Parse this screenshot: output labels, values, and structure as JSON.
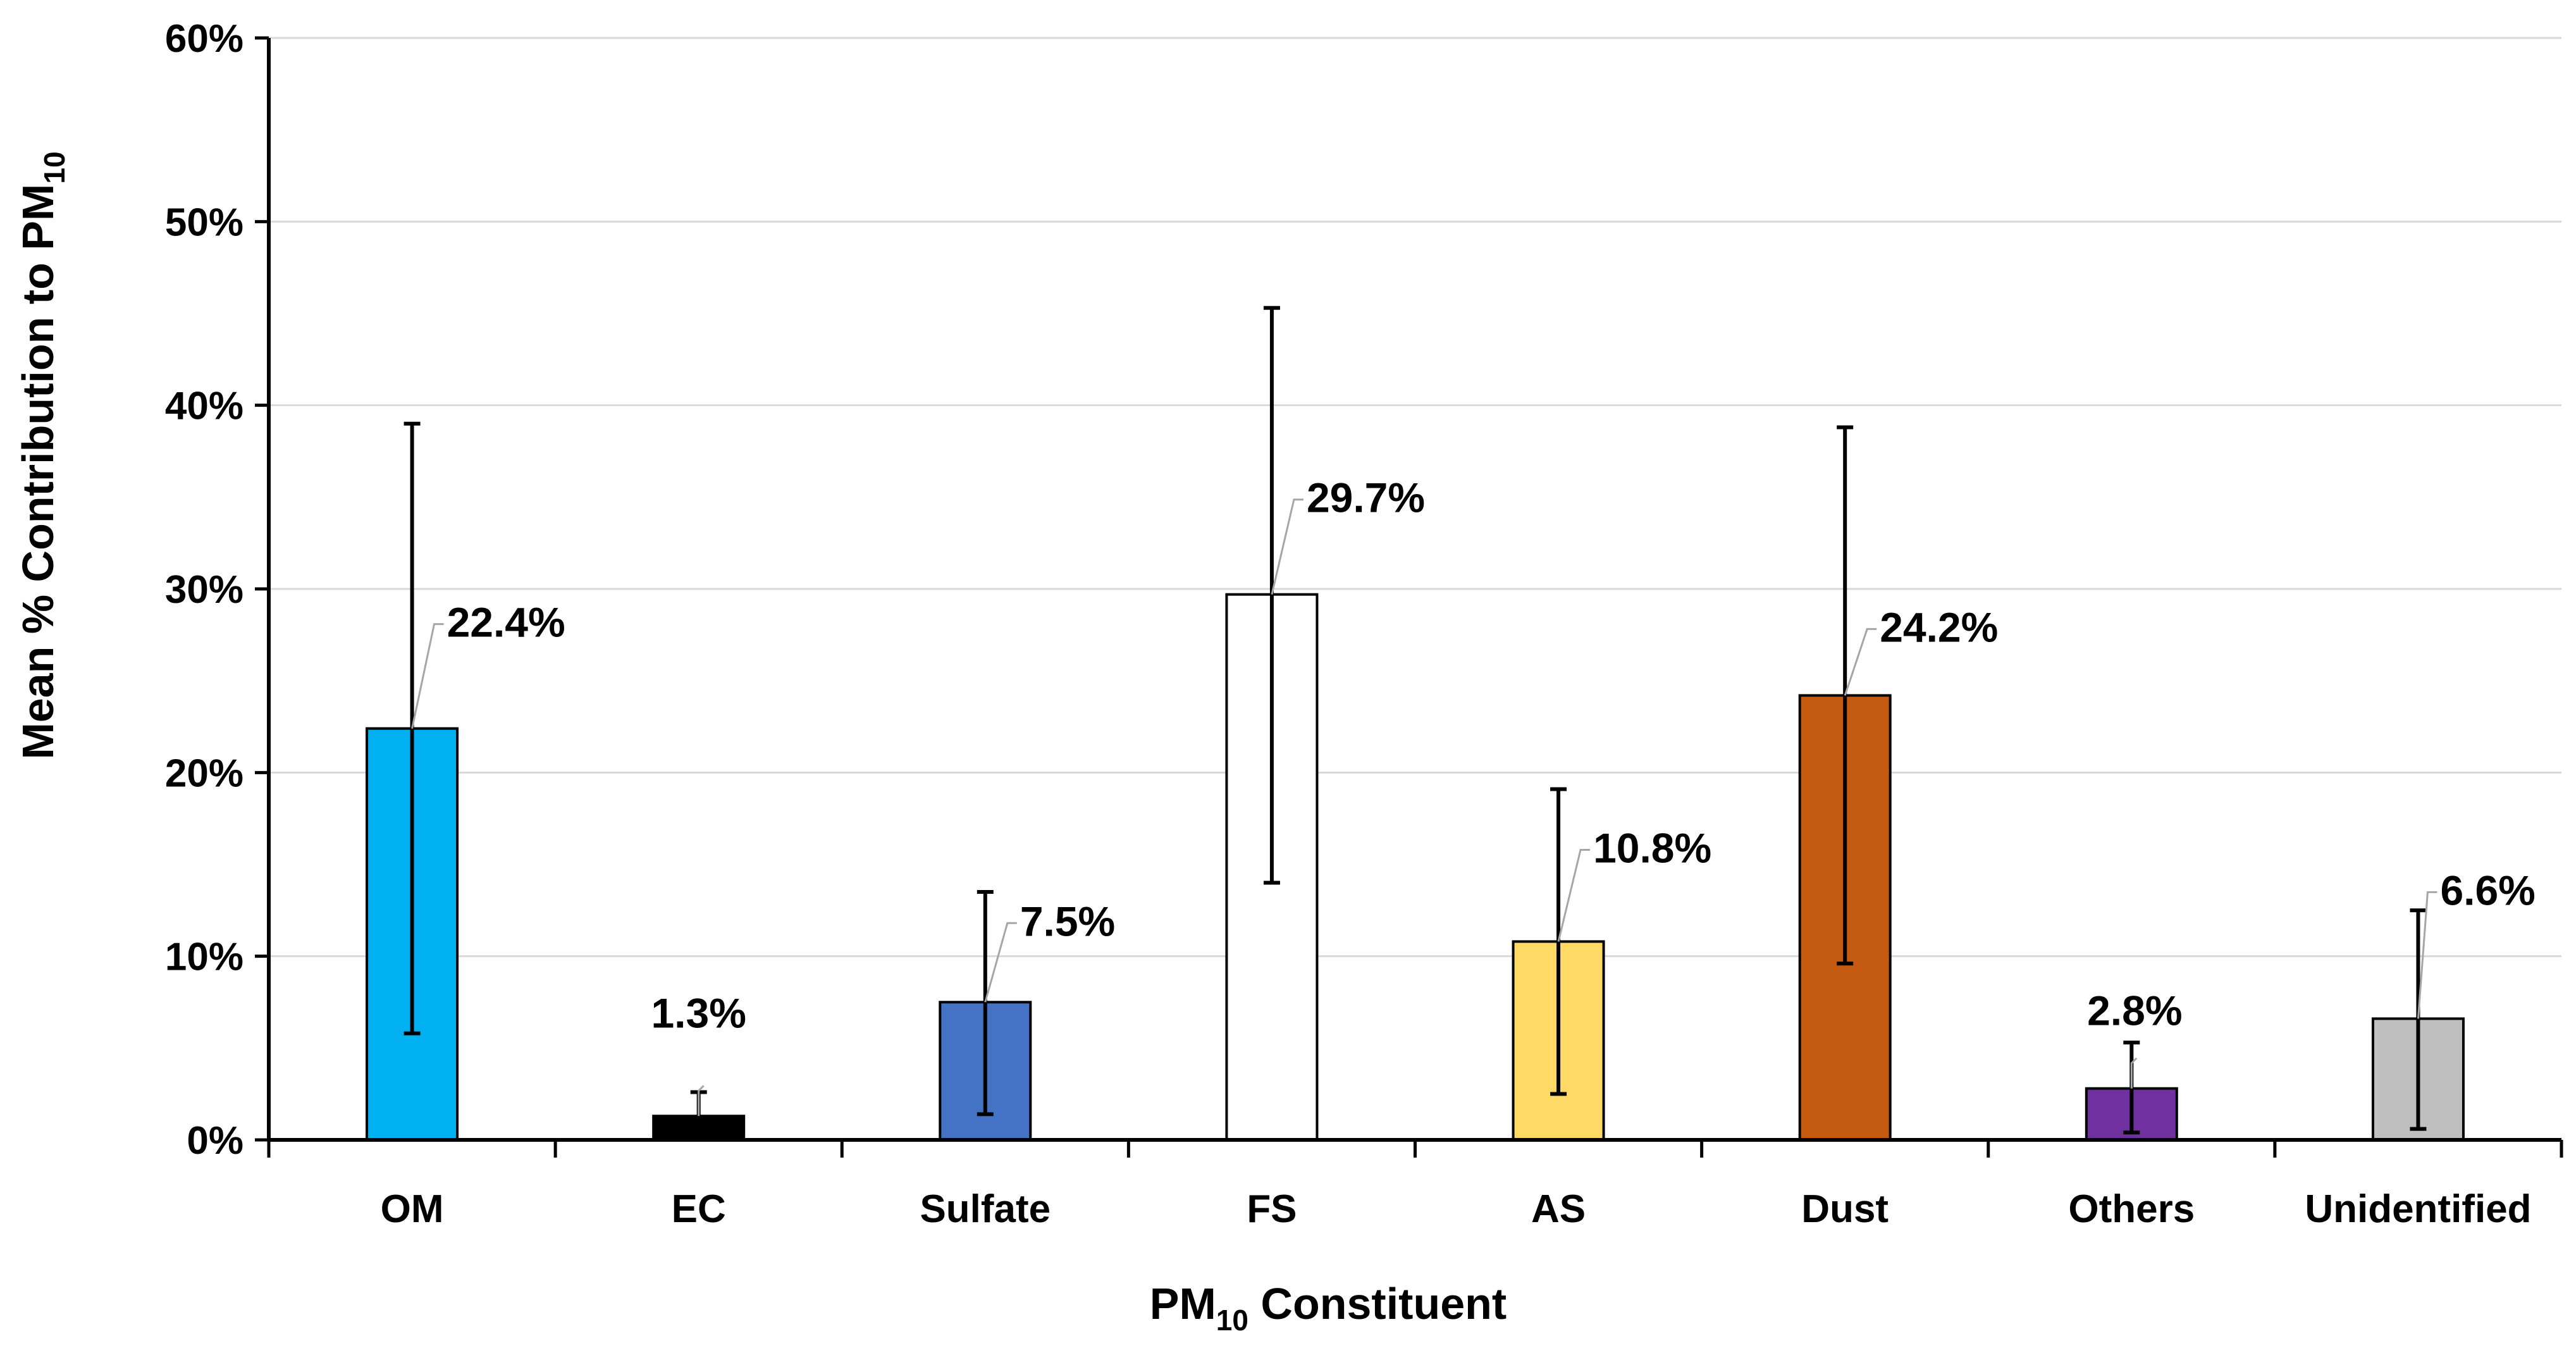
{
  "chart_data": {
    "type": "bar",
    "title": "",
    "xlabel": {
      "main": "PM",
      "sub": "10",
      "rest": " Constituent"
    },
    "ylabel": {
      "main": "Mean % Contribution to PM",
      "sub": "10"
    },
    "ylim": [
      0,
      60
    ],
    "yticks": [
      {
        "value": 0,
        "label": "0%"
      },
      {
        "value": 10,
        "label": "10%"
      },
      {
        "value": 20,
        "label": "20%"
      },
      {
        "value": 30,
        "label": "30%"
      },
      {
        "value": 40,
        "label": "40%"
      },
      {
        "value": 50,
        "label": "50%"
      },
      {
        "value": 60,
        "label": "60%"
      }
    ],
    "grid": true,
    "categories": [
      "OM",
      "EC",
      "Sulfate",
      "FS",
      "AS",
      "Dust",
      "Others",
      "Unidentified"
    ],
    "values": [
      22.4,
      1.3,
      7.5,
      29.7,
      10.8,
      24.2,
      2.8,
      6.6
    ],
    "error_low": [
      5.8,
      0.0,
      1.4,
      14.0,
      2.5,
      9.6,
      0.4,
      0.6
    ],
    "error_high": [
      39.0,
      2.6,
      13.5,
      45.3,
      19.1,
      38.8,
      5.3,
      12.5
    ],
    "data_labels": [
      "22.4%",
      "1.3%",
      "7.5%",
      "29.7%",
      "10.8%",
      "24.2%",
      "2.8%",
      "6.6%"
    ],
    "colors": [
      "#00B0F0",
      "#000000",
      "#4472C4",
      "#FFFFFF",
      "#FFD966",
      "#C55A11",
      "#7030A0",
      "#BFBFBF"
    ]
  }
}
